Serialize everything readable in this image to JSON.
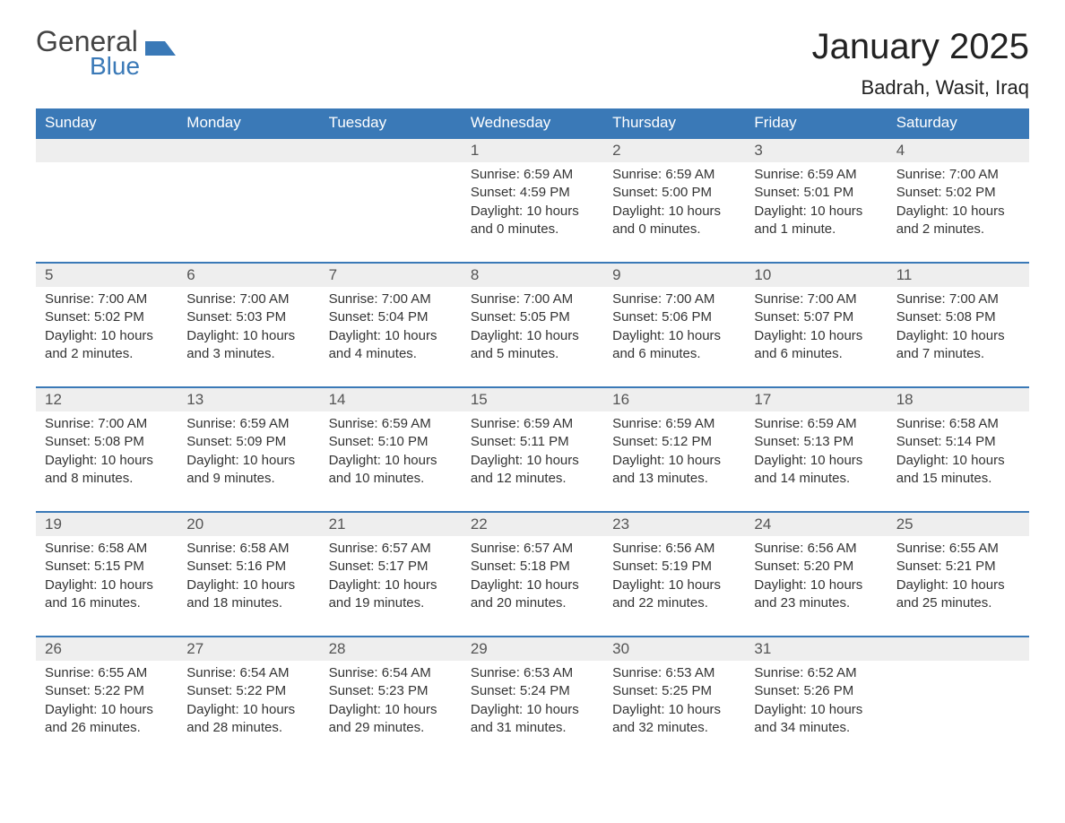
{
  "brand": {
    "general": "General",
    "blue": "Blue"
  },
  "title": "January 2025",
  "location": "Badrah, Wasit, Iraq",
  "colors": {
    "header_bg": "#3a79b7",
    "header_text": "#ffffff",
    "daynum_bg": "#eeeeee",
    "daynum_border": "#3a79b7",
    "body_text": "#333333",
    "background": "#ffffff"
  },
  "typography": {
    "title_fontsize": 40,
    "location_fontsize": 22,
    "weekday_fontsize": 17,
    "daynum_fontsize": 17,
    "detail_fontsize": 15
  },
  "weekdays": [
    "Sunday",
    "Monday",
    "Tuesday",
    "Wednesday",
    "Thursday",
    "Friday",
    "Saturday"
  ],
  "weeks": [
    [
      null,
      null,
      null,
      {
        "n": "1",
        "sr": "6:59 AM",
        "ss": "4:59 PM",
        "dl": "10 hours and 0 minutes."
      },
      {
        "n": "2",
        "sr": "6:59 AM",
        "ss": "5:00 PM",
        "dl": "10 hours and 0 minutes."
      },
      {
        "n": "3",
        "sr": "6:59 AM",
        "ss": "5:01 PM",
        "dl": "10 hours and 1 minute."
      },
      {
        "n": "4",
        "sr": "7:00 AM",
        "ss": "5:02 PM",
        "dl": "10 hours and 2 minutes."
      }
    ],
    [
      {
        "n": "5",
        "sr": "7:00 AM",
        "ss": "5:02 PM",
        "dl": "10 hours and 2 minutes."
      },
      {
        "n": "6",
        "sr": "7:00 AM",
        "ss": "5:03 PM",
        "dl": "10 hours and 3 minutes."
      },
      {
        "n": "7",
        "sr": "7:00 AM",
        "ss": "5:04 PM",
        "dl": "10 hours and 4 minutes."
      },
      {
        "n": "8",
        "sr": "7:00 AM",
        "ss": "5:05 PM",
        "dl": "10 hours and 5 minutes."
      },
      {
        "n": "9",
        "sr": "7:00 AM",
        "ss": "5:06 PM",
        "dl": "10 hours and 6 minutes."
      },
      {
        "n": "10",
        "sr": "7:00 AM",
        "ss": "5:07 PM",
        "dl": "10 hours and 6 minutes."
      },
      {
        "n": "11",
        "sr": "7:00 AM",
        "ss": "5:08 PM",
        "dl": "10 hours and 7 minutes."
      }
    ],
    [
      {
        "n": "12",
        "sr": "7:00 AM",
        "ss": "5:08 PM",
        "dl": "10 hours and 8 minutes."
      },
      {
        "n": "13",
        "sr": "6:59 AM",
        "ss": "5:09 PM",
        "dl": "10 hours and 9 minutes."
      },
      {
        "n": "14",
        "sr": "6:59 AM",
        "ss": "5:10 PM",
        "dl": "10 hours and 10 minutes."
      },
      {
        "n": "15",
        "sr": "6:59 AM",
        "ss": "5:11 PM",
        "dl": "10 hours and 12 minutes."
      },
      {
        "n": "16",
        "sr": "6:59 AM",
        "ss": "5:12 PM",
        "dl": "10 hours and 13 minutes."
      },
      {
        "n": "17",
        "sr": "6:59 AM",
        "ss": "5:13 PM",
        "dl": "10 hours and 14 minutes."
      },
      {
        "n": "18",
        "sr": "6:58 AM",
        "ss": "5:14 PM",
        "dl": "10 hours and 15 minutes."
      }
    ],
    [
      {
        "n": "19",
        "sr": "6:58 AM",
        "ss": "5:15 PM",
        "dl": "10 hours and 16 minutes."
      },
      {
        "n": "20",
        "sr": "6:58 AM",
        "ss": "5:16 PM",
        "dl": "10 hours and 18 minutes."
      },
      {
        "n": "21",
        "sr": "6:57 AM",
        "ss": "5:17 PM",
        "dl": "10 hours and 19 minutes."
      },
      {
        "n": "22",
        "sr": "6:57 AM",
        "ss": "5:18 PM",
        "dl": "10 hours and 20 minutes."
      },
      {
        "n": "23",
        "sr": "6:56 AM",
        "ss": "5:19 PM",
        "dl": "10 hours and 22 minutes."
      },
      {
        "n": "24",
        "sr": "6:56 AM",
        "ss": "5:20 PM",
        "dl": "10 hours and 23 minutes."
      },
      {
        "n": "25",
        "sr": "6:55 AM",
        "ss": "5:21 PM",
        "dl": "10 hours and 25 minutes."
      }
    ],
    [
      {
        "n": "26",
        "sr": "6:55 AM",
        "ss": "5:22 PM",
        "dl": "10 hours and 26 minutes."
      },
      {
        "n": "27",
        "sr": "6:54 AM",
        "ss": "5:22 PM",
        "dl": "10 hours and 28 minutes."
      },
      {
        "n": "28",
        "sr": "6:54 AM",
        "ss": "5:23 PM",
        "dl": "10 hours and 29 minutes."
      },
      {
        "n": "29",
        "sr": "6:53 AM",
        "ss": "5:24 PM",
        "dl": "10 hours and 31 minutes."
      },
      {
        "n": "30",
        "sr": "6:53 AM",
        "ss": "5:25 PM",
        "dl": "10 hours and 32 minutes."
      },
      {
        "n": "31",
        "sr": "6:52 AM",
        "ss": "5:26 PM",
        "dl": "10 hours and 34 minutes."
      },
      null
    ]
  ],
  "labels": {
    "sunrise": "Sunrise: ",
    "sunset": "Sunset: ",
    "daylight": "Daylight: "
  }
}
